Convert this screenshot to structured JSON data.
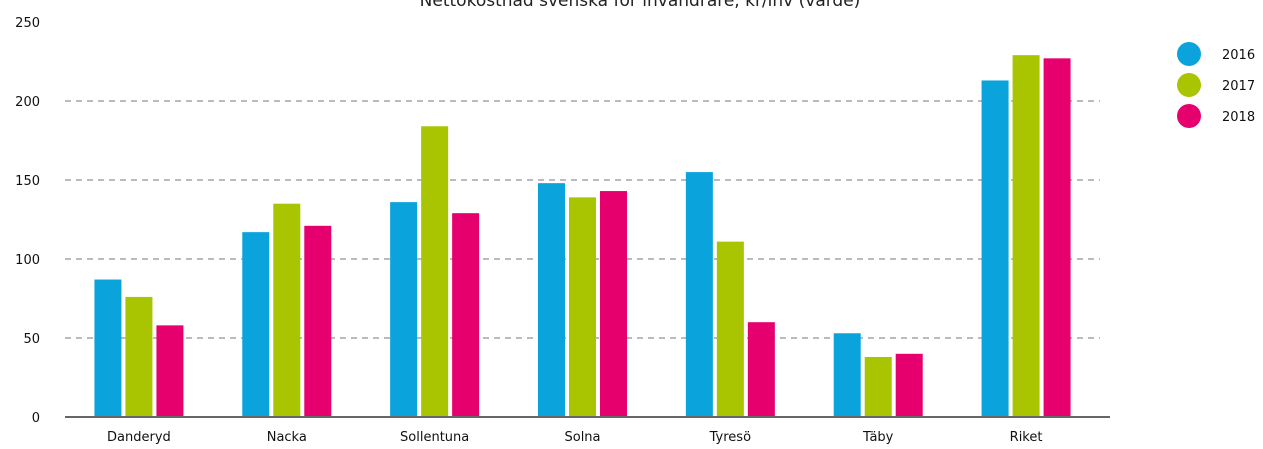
{
  "chart_data": {
    "type": "bar",
    "title": "Nettokostnad svenska för invandrare, kr/inv (värde)",
    "xlabel": "",
    "ylabel": "",
    "ylim": [
      0,
      250
    ],
    "yticks": [
      0,
      50,
      100,
      150,
      200,
      250
    ],
    "grid": true,
    "legend_position": "top-right",
    "categories": [
      "Danderyd",
      "Nacka",
      "Sollentuna",
      "Solna",
      "Tyresö",
      "Täby",
      "Riket"
    ],
    "series": [
      {
        "name": "2016",
        "color": "#0aa3dc",
        "values": [
          87,
          117,
          136,
          148,
          155,
          53,
          213
        ]
      },
      {
        "name": "2017",
        "color": "#a9c400",
        "values": [
          76,
          135,
          184,
          139,
          111,
          38,
          229
        ]
      },
      {
        "name": "2018",
        "color": "#e6006e",
        "values": [
          58,
          121,
          129,
          143,
          60,
          40,
          227
        ]
      }
    ]
  }
}
